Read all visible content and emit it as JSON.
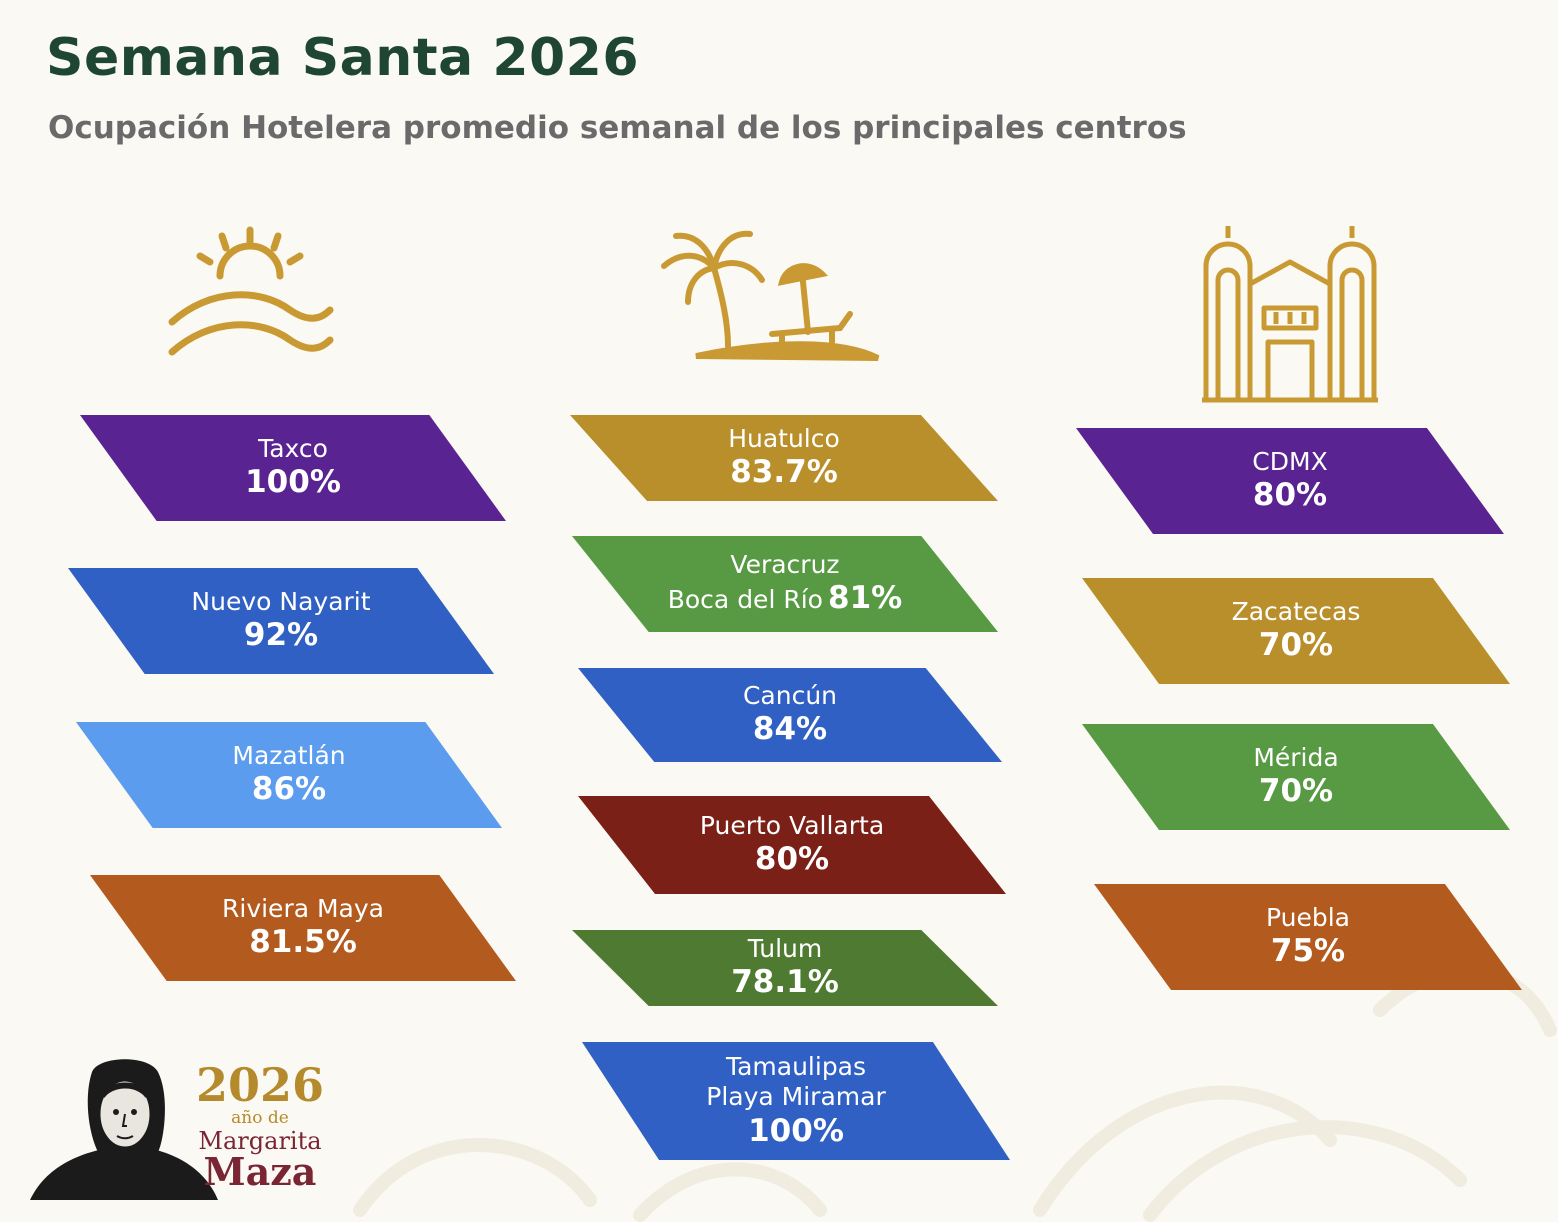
{
  "header": {
    "title": "Semana Santa 2026",
    "subtitle": "Ocupación Hotelera promedio semanal de los principales centros"
  },
  "colors": {
    "gold": "#c99a33",
    "purple": "#5a2392",
    "blue": "#3060c4",
    "light_blue": "#5b9cee",
    "orange": "#b35a1f",
    "mustard": "#b88f2b",
    "green": "#579a43",
    "dark_red": "#7b2016",
    "olive": "#4f7a31"
  },
  "icons": {
    "col1": "sun-over-waves-icon",
    "col2": "palm-tree-beach-icon",
    "col3": "cathedral-icon"
  },
  "columns": [
    {
      "tiles": [
        {
          "name": "Taxco",
          "value": "100%",
          "occupancy_percent": 100,
          "color": "#5a2392"
        },
        {
          "name": "Nuevo Nayarit",
          "value": "92%",
          "occupancy_percent": 92,
          "color": "#3060c4"
        },
        {
          "name": "Mazatlán",
          "value": "86%",
          "occupancy_percent": 86,
          "color": "#5b9cee"
        },
        {
          "name": "Riviera Maya",
          "value": "81.5%",
          "occupancy_percent": 81.5,
          "color": "#b35a1f"
        }
      ]
    },
    {
      "tiles": [
        {
          "name": "Huatulco",
          "value": "83.7%",
          "occupancy_percent": 83.7,
          "color": "#b88f2b"
        },
        {
          "name": "Veracruz",
          "name2": "Boca del Río",
          "value": "81%",
          "occupancy_percent": 81,
          "color": "#579a43"
        },
        {
          "name": "Cancún",
          "value": "84%",
          "occupancy_percent": 84,
          "color": "#3060c4"
        },
        {
          "name": "Puerto Vallarta",
          "value": "80%",
          "occupancy_percent": 80,
          "color": "#7b2016"
        },
        {
          "name": "Tulum",
          "value": "78.1%",
          "occupancy_percent": 78.1,
          "color": "#4f7a31"
        },
        {
          "name": "Tamaulipas",
          "name2": "Playa Miramar",
          "value": "100%",
          "occupancy_percent": 100,
          "color": "#3060c4"
        }
      ]
    },
    {
      "tiles": [
        {
          "name": "CDMX",
          "value": "80%",
          "occupancy_percent": 80,
          "color": "#5a2392"
        },
        {
          "name": "Zacatecas",
          "value": "70%",
          "occupancy_percent": 70,
          "color": "#b88f2b"
        },
        {
          "name": "Mérida",
          "value": "70%",
          "occupancy_percent": 70,
          "color": "#579a43"
        },
        {
          "name": "Puebla",
          "value": "75%",
          "occupancy_percent": 75,
          "color": "#b35a1f"
        }
      ]
    }
  ],
  "logo": {
    "year": "2026",
    "subtitle": "año de",
    "first_name": "Margarita",
    "last_name": "Maza"
  }
}
